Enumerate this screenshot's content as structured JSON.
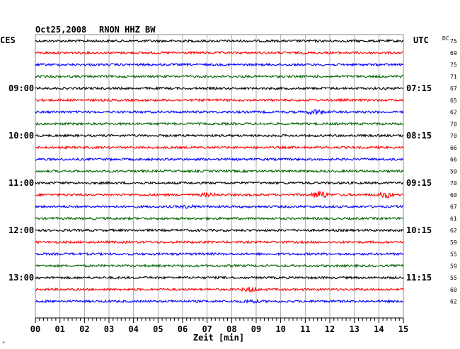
{
  "header": {
    "date": "Oct25,2008",
    "station": "RNON HHZ BW",
    "left_tz": "CES",
    "right_tz": "UTC",
    "dc_label": "DC"
  },
  "chart_data": {
    "type": "helicorder",
    "xlabel": "Zeit [min]",
    "x_ticks": [
      "00",
      "01",
      "02",
      "03",
      "04",
      "05",
      "06",
      "07",
      "08",
      "09",
      "10",
      "11",
      "12",
      "13",
      "14",
      "15"
    ],
    "xlim": [
      0,
      15
    ],
    "row_colors": [
      "#000000",
      "#ff0000",
      "#0000ff",
      "#006400"
    ],
    "left_time_labels": [
      {
        "row": 4,
        "label": "09:00"
      },
      {
        "row": 8,
        "label": "10:00"
      },
      {
        "row": 12,
        "label": "11:00"
      },
      {
        "row": 16,
        "label": "12:00"
      },
      {
        "row": 20,
        "label": "13:00"
      }
    ],
    "right_time_labels": [
      {
        "row": 4,
        "label": "07:15"
      },
      {
        "row": 8,
        "label": "08:15"
      },
      {
        "row": 12,
        "label": "09:15"
      },
      {
        "row": 16,
        "label": "10:15"
      },
      {
        "row": 20,
        "label": "11:15"
      }
    ],
    "dc_values": [
      "75",
      "69",
      "75",
      "71",
      "67",
      "65",
      "62",
      "70",
      "70",
      "66",
      "66",
      "59",
      "70",
      "60",
      "67",
      "61",
      "62",
      "59",
      "55",
      "59",
      "55",
      "60",
      "62"
    ],
    "events": [
      {
        "row": 6,
        "minute": 11.4,
        "amplitude": 3.0
      },
      {
        "row": 13,
        "minute": 7.0,
        "amplitude": 2.0
      },
      {
        "row": 13,
        "minute": 11.6,
        "amplitude": 5.5
      },
      {
        "row": 13,
        "minute": 14.3,
        "amplitude": 3.5
      },
      {
        "row": 14,
        "minute": 6.2,
        "amplitude": 1.6
      },
      {
        "row": 21,
        "minute": 8.8,
        "amplitude": 3.0
      },
      {
        "row": 22,
        "minute": 8.8,
        "amplitude": 1.6
      }
    ]
  },
  "corner_mark": "*"
}
